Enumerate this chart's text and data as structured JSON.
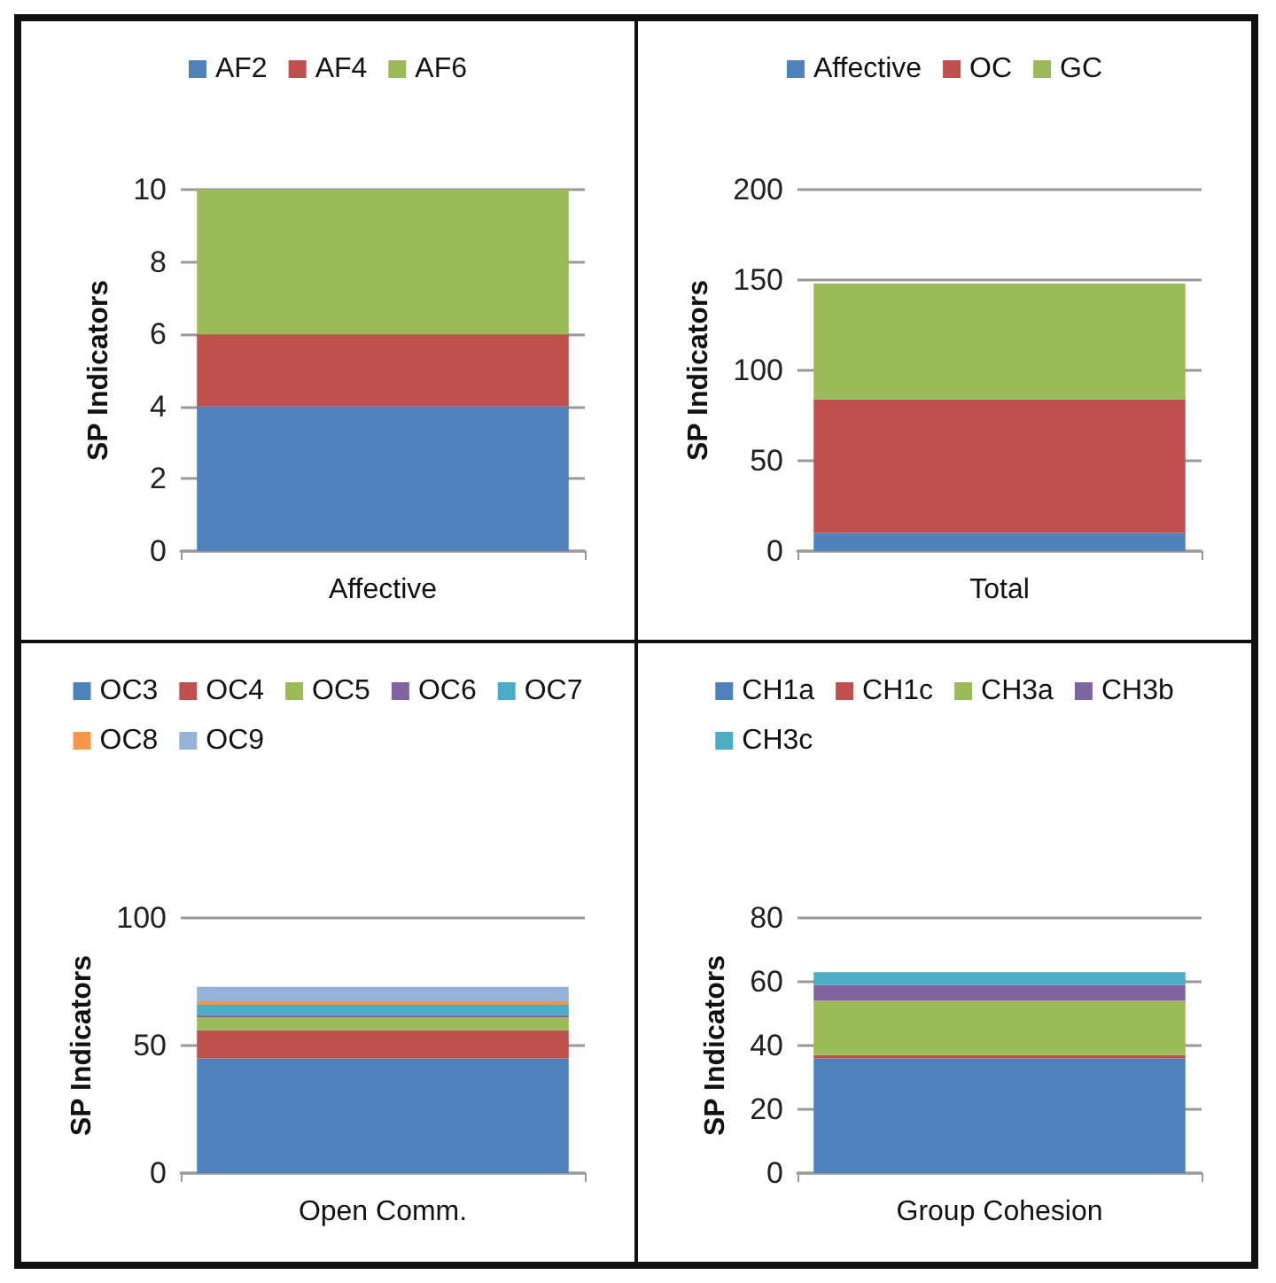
{
  "chart_data": [
    {
      "type": "bar",
      "stacked": true,
      "categories": [
        "Affective"
      ],
      "ylabel": "SP Indicators",
      "ylim": [
        0,
        10
      ],
      "yticks": [
        0,
        2,
        4,
        6,
        8,
        10
      ],
      "grid": "y",
      "legend": "top",
      "series": [
        {
          "name": "AF2",
          "color": "#4f81bd",
          "values": [
            4
          ]
        },
        {
          "name": "AF4",
          "color": "#c0504d",
          "values": [
            2
          ]
        },
        {
          "name": "AF6",
          "color": "#9bbb59",
          "values": [
            4
          ]
        }
      ]
    },
    {
      "type": "bar",
      "stacked": true,
      "categories": [
        "Total"
      ],
      "ylabel": "SP Indicators",
      "ylim": [
        0,
        200
      ],
      "yticks": [
        0,
        50,
        100,
        150,
        200
      ],
      "grid": "y",
      "legend": "top",
      "series": [
        {
          "name": "Affective",
          "color": "#4f81bd",
          "values": [
            10
          ]
        },
        {
          "name": "OC",
          "color": "#c0504d",
          "values": [
            74
          ]
        },
        {
          "name": "GC",
          "color": "#9bbb59",
          "values": [
            64
          ]
        }
      ]
    },
    {
      "type": "bar",
      "stacked": true,
      "categories": [
        "Open Comm."
      ],
      "ylabel": "SP Indicators",
      "ylim": [
        0,
        100
      ],
      "yticks": [
        0,
        50,
        100
      ],
      "grid": "y",
      "legend": "top",
      "series": [
        {
          "name": "OC3",
          "color": "#4f81bd",
          "values": [
            45
          ]
        },
        {
          "name": "OC4",
          "color": "#c0504d",
          "values": [
            11
          ]
        },
        {
          "name": "OC5",
          "color": "#9bbb59",
          "values": [
            5
          ]
        },
        {
          "name": "OC6",
          "color": "#8064a2",
          "values": [
            1
          ]
        },
        {
          "name": "OC7",
          "color": "#4bacc6",
          "values": [
            4
          ]
        },
        {
          "name": "OC8",
          "color": "#f79646",
          "values": [
            1
          ]
        },
        {
          "name": "OC9",
          "color": "#95b3d7",
          "values": [
            6
          ]
        }
      ]
    },
    {
      "type": "bar",
      "stacked": true,
      "categories": [
        "Group Cohesion"
      ],
      "ylabel": "SP Indicators",
      "ylim": [
        0,
        80
      ],
      "yticks": [
        0,
        20,
        40,
        60,
        80
      ],
      "grid": "y",
      "legend": "top",
      "series": [
        {
          "name": "CH1a",
          "color": "#4f81bd",
          "values": [
            36
          ]
        },
        {
          "name": "CH1c",
          "color": "#c0504d",
          "values": [
            1
          ]
        },
        {
          "name": "CH3a",
          "color": "#9bbb59",
          "values": [
            17
          ]
        },
        {
          "name": "CH3b",
          "color": "#8064a2",
          "values": [
            5
          ]
        },
        {
          "name": "CH3c",
          "color": "#4bacc6",
          "values": [
            4
          ]
        }
      ]
    }
  ]
}
